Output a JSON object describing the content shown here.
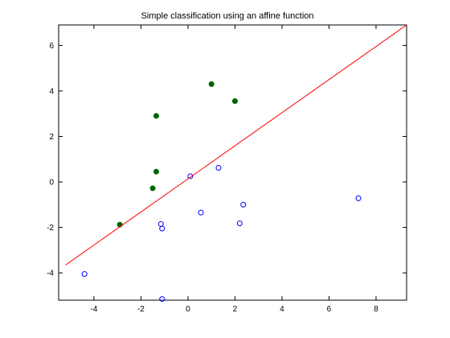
{
  "chart_data": {
    "type": "scatter",
    "title": "Simple classification using an affine function",
    "xlabel": "",
    "ylabel": "",
    "xlim": [
      -5.5,
      9.3
    ],
    "ylim": [
      -5.2,
      6.9
    ],
    "xticks": [
      -4,
      -2,
      0,
      2,
      4,
      6,
      8
    ],
    "yticks": [
      -4,
      -2,
      0,
      2,
      4,
      6
    ],
    "grid": false,
    "series": [
      {
        "marker": "filled-circle",
        "color": "#006400",
        "points": [
          {
            "x": 1.0,
            "y": 4.3
          },
          {
            "x": 2.0,
            "y": 3.55
          },
          {
            "x": -1.35,
            "y": 2.9
          },
          {
            "x": -1.35,
            "y": 0.45
          },
          {
            "x": -1.5,
            "y": -0.28
          },
          {
            "x": -2.9,
            "y": -1.88
          }
        ]
      },
      {
        "marker": "open-circle",
        "color": "#0000ff",
        "points": [
          {
            "x": 1.3,
            "y": 0.62
          },
          {
            "x": 0.1,
            "y": 0.25
          },
          {
            "x": 2.35,
            "y": -1.0
          },
          {
            "x": 0.55,
            "y": -1.35
          },
          {
            "x": 2.2,
            "y": -1.82
          },
          {
            "x": -1.15,
            "y": -1.85
          },
          {
            "x": -1.1,
            "y": -2.05
          },
          {
            "x": 7.25,
            "y": -0.72
          },
          {
            "x": -4.4,
            "y": -4.05
          },
          {
            "x": -1.1,
            "y": -5.15
          }
        ]
      },
      {
        "type": "line",
        "color": "#ff0000",
        "points": [
          {
            "x": -5.2,
            "y": -3.65
          },
          {
            "x": 9.3,
            "y": 6.9
          }
        ]
      }
    ]
  }
}
